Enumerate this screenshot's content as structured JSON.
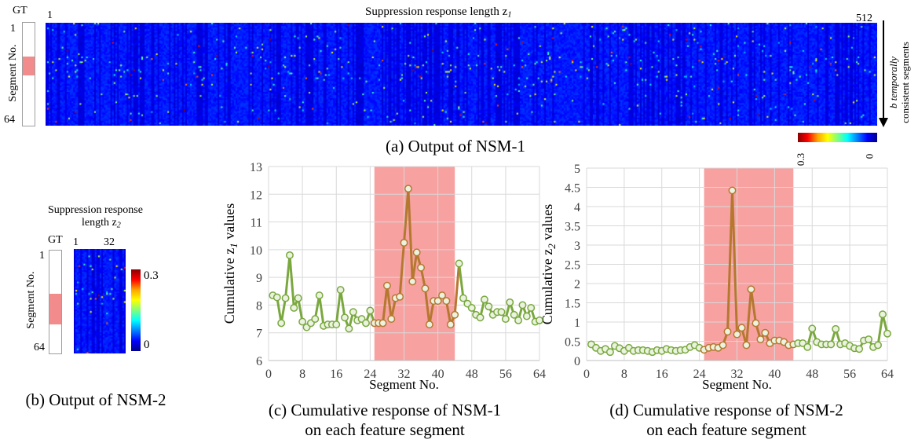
{
  "panel_a": {
    "title": "Suppression response length z",
    "title_sub": "1",
    "gt_label": "GT",
    "ylabel": "Segment No.",
    "y_top": "1",
    "y_bottom": "64",
    "x_left": "1",
    "x_right": "512",
    "arrow_label_1": "b temporally",
    "arrow_label_2": "consistent segments",
    "colorbar_low": "0",
    "colorbar_high": "0.3",
    "caption": "(a) Output of NSM-1",
    "gt_highlight": [
      0.33,
      0.51
    ]
  },
  "panel_b": {
    "title_1": "Suppression response",
    "title_2": "length z",
    "title_sub": "2",
    "gt_label": "GT",
    "ylabel": "Segment No.",
    "y_top": "1",
    "y_bottom": "64",
    "x_left": "1",
    "x_right": "32",
    "colorbar_high": "0.3",
    "colorbar_low": "0",
    "caption": "(b) Output of NSM-2",
    "gt_highlight": [
      0.42,
      0.72
    ]
  },
  "colors": {
    "line": "#7aa83f",
    "line_highlight": "#b5782f",
    "marker_fill": "#eaf3df",
    "highlight": "#f7a1a1",
    "heatmap_bg": "#00008f"
  },
  "chart_data": [
    {
      "type": "line",
      "ylabel": "Cumulative z",
      "ylabel_sub": "1",
      "ylabel_suffix": " values",
      "xlabel": "Segment No.",
      "xticks": [
        0,
        8,
        16,
        24,
        32,
        40,
        48,
        56,
        64
      ],
      "yticks": [
        6,
        7,
        8,
        9,
        10,
        11,
        12,
        13
      ],
      "xlim": [
        0,
        64
      ],
      "ylim": [
        6,
        13
      ],
      "grid": true,
      "highlight_range": [
        25,
        44
      ],
      "caption_1": "(c) Cumulative response of NSM-1",
      "caption_2": "on each feature segment",
      "x": [
        1,
        2,
        3,
        4,
        5,
        6,
        7,
        8,
        9,
        10,
        11,
        12,
        13,
        14,
        15,
        16,
        17,
        18,
        19,
        20,
        21,
        22,
        23,
        24,
        25,
        26,
        27,
        28,
        29,
        30,
        31,
        32,
        33,
        34,
        35,
        36,
        37,
        38,
        39,
        40,
        41,
        42,
        43,
        44,
        45,
        46,
        47,
        48,
        49,
        50,
        51,
        52,
        53,
        54,
        55,
        56,
        57,
        58,
        59,
        60,
        61,
        62,
        63,
        64
      ],
      "values": [
        8.35,
        8.28,
        7.35,
        8.25,
        9.8,
        7.9,
        8.25,
        7.4,
        7.2,
        7.35,
        7.5,
        8.35,
        7.25,
        7.3,
        7.3,
        7.3,
        8.55,
        7.55,
        7.15,
        7.75,
        7.45,
        7.5,
        7.35,
        7.8,
        7.35,
        7.35,
        7.35,
        8.7,
        7.5,
        8.25,
        8.3,
        10.25,
        12.2,
        8.85,
        9.9,
        9.35,
        8.6,
        7.3,
        8.15,
        8.15,
        8.35,
        8.15,
        7.3,
        7.65,
        9.5,
        8.25,
        8.05,
        7.9,
        7.65,
        7.55,
        8.2,
        7.95,
        7.65,
        7.75,
        7.75,
        7.5,
        8.1,
        7.65,
        7.45,
        8.0,
        7.6,
        7.9,
        7.4,
        7.45
      ]
    },
    {
      "type": "line",
      "ylabel": "Cumulative z",
      "ylabel_sub": "2",
      "ylabel_suffix": " values",
      "xlabel": "Segment No.",
      "xticks": [
        0,
        8,
        16,
        24,
        32,
        40,
        48,
        56,
        64
      ],
      "yticks": [
        "0",
        "0.5",
        "1",
        "1.5",
        "2",
        "2.5",
        "3",
        "3.5",
        "4",
        "4.5",
        "5"
      ],
      "xlim": [
        0,
        64
      ],
      "ylim": [
        0,
        5
      ],
      "grid": true,
      "highlight_range": [
        25,
        44
      ],
      "caption_1": "(d) Cumulative response of NSM-2",
      "caption_2": "on each feature segment",
      "x": [
        1,
        2,
        3,
        4,
        5,
        6,
        7,
        8,
        9,
        10,
        11,
        12,
        13,
        14,
        15,
        16,
        17,
        18,
        19,
        20,
        21,
        22,
        23,
        24,
        25,
        26,
        27,
        28,
        29,
        30,
        31,
        32,
        33,
        34,
        35,
        36,
        37,
        38,
        39,
        40,
        41,
        42,
        43,
        44,
        45,
        46,
        47,
        48,
        49,
        50,
        51,
        52,
        53,
        54,
        55,
        56,
        57,
        58,
        59,
        60,
        61,
        62,
        63,
        64
      ],
      "values": [
        0.42,
        0.33,
        0.25,
        0.3,
        0.22,
        0.38,
        0.32,
        0.25,
        0.33,
        0.25,
        0.27,
        0.27,
        0.25,
        0.22,
        0.27,
        0.25,
        0.3,
        0.27,
        0.25,
        0.27,
        0.28,
        0.35,
        0.4,
        0.33,
        0.28,
        0.33,
        0.35,
        0.33,
        0.4,
        0.75,
        4.42,
        0.68,
        0.85,
        0.4,
        1.85,
        0.97,
        0.55,
        0.72,
        0.45,
        0.52,
        0.52,
        0.48,
        0.4,
        0.42,
        0.45,
        0.45,
        0.35,
        0.83,
        0.48,
        0.42,
        0.42,
        0.42,
        0.82,
        0.42,
        0.45,
        0.38,
        0.32,
        0.3,
        0.52,
        0.55,
        0.35,
        0.4,
        1.2,
        0.7
      ]
    }
  ]
}
